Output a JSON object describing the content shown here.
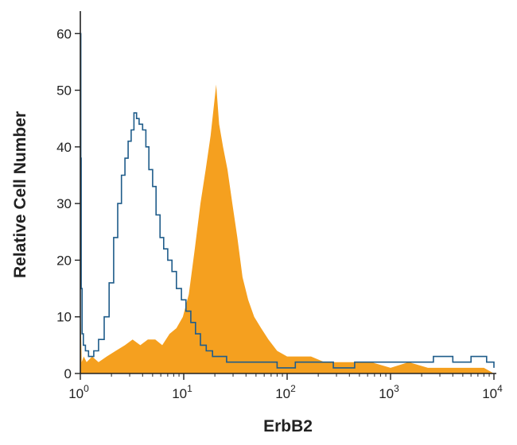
{
  "chart_data": {
    "type": "area",
    "xlabel": "ErbB2",
    "ylabel": "Relative Cell Number",
    "x_scale": "log",
    "xlim": [
      1,
      10000
    ],
    "ylim": [
      0,
      62
    ],
    "x_ticks": [
      {
        "value": 1,
        "base": "10",
        "exp": "0"
      },
      {
        "value": 10,
        "base": "10",
        "exp": "1"
      },
      {
        "value": 100,
        "base": "10",
        "exp": "2"
      },
      {
        "value": 1000,
        "base": "10",
        "exp": "3"
      },
      {
        "value": 10000,
        "base": "10",
        "exp": "4"
      }
    ],
    "y_ticks": [
      0,
      10,
      20,
      30,
      40,
      50,
      60
    ],
    "grid": false,
    "legend": "none",
    "series": [
      {
        "style": "filled",
        "color": "#f5a01f",
        "x": [
          1.0,
          1.03,
          1.08,
          1.15,
          1.3,
          1.5,
          1.8,
          2.2,
          2.7,
          3.2,
          3.8,
          4.5,
          5.3,
          6.2,
          7.3,
          8.5,
          9.8,
          11.2,
          12.8,
          14.5,
          16.3,
          18.2,
          19.5,
          20.6,
          22.0,
          24.0,
          26.5,
          29.5,
          33.0,
          37.0,
          42.0,
          48.0,
          56.0,
          66.0,
          80.0,
          100.0,
          130.0,
          170.0,
          230.0,
          320.0,
          450.0,
          650.0,
          1000.0,
          1500.0,
          2300.0,
          3500.0,
          5500.0,
          8000.0,
          10000.0
        ],
        "values": [
          13,
          2,
          3,
          2,
          3,
          2,
          3,
          4,
          5,
          6,
          5,
          6,
          6,
          5,
          7,
          8,
          10,
          14,
          22,
          30,
          36,
          42,
          47,
          51,
          44,
          40,
          36,
          30,
          24,
          17,
          13,
          10,
          8,
          6,
          4,
          3,
          3,
          3,
          2,
          2,
          2,
          2,
          1,
          2,
          1,
          1,
          1,
          1,
          0
        ]
      },
      {
        "style": "outline",
        "color": "#1f5c8a",
        "x": [
          1.0,
          1.01,
          1.02,
          1.04,
          1.07,
          1.12,
          1.2,
          1.35,
          1.5,
          1.7,
          1.9,
          2.1,
          2.3,
          2.5,
          2.7,
          2.9,
          3.1,
          3.3,
          3.5,
          3.7,
          4.0,
          4.3,
          4.6,
          5.0,
          5.4,
          5.9,
          6.4,
          7.0,
          7.7,
          8.5,
          9.5,
          10.5,
          11.7,
          13.0,
          14.5,
          16.5,
          19.0,
          22.0,
          26.0,
          32.0,
          40.0,
          55.0,
          80.0,
          120.0,
          180.0,
          280.0,
          450.0,
          700.0,
          1100.0,
          1700.0,
          2600.0,
          4000.0,
          6000.0,
          8500.0,
          10000.0
        ],
        "values": [
          60,
          38,
          15,
          7,
          5,
          4,
          3,
          4,
          6,
          10,
          16,
          24,
          30,
          35,
          38,
          41,
          43,
          46,
          45,
          44,
          43,
          40,
          36,
          33,
          28,
          24,
          22,
          20,
          18,
          15,
          13,
          11,
          9,
          7,
          5,
          4,
          3,
          3,
          2,
          2,
          2,
          2,
          1,
          2,
          2,
          1,
          2,
          2,
          2,
          2,
          3,
          2,
          3,
          2,
          1
        ]
      }
    ]
  }
}
